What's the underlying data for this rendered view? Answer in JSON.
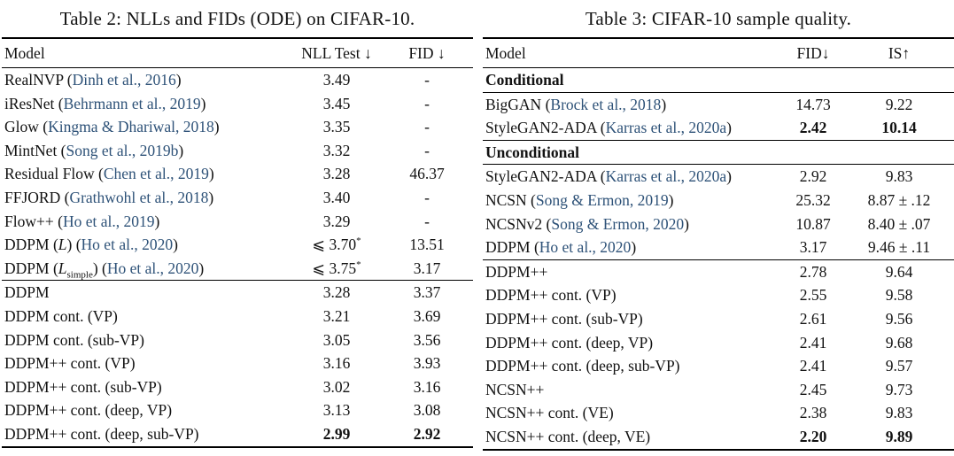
{
  "citation_color": "#2E5278",
  "tables": [
    {
      "title": "Table 2: NLLs and FIDs (ODE) on CIFAR-10.",
      "columns": [
        "Model",
        "NLL Test ↓",
        "FID ↓"
      ],
      "groups": [
        {
          "rows": [
            {
              "model": [
                {
                  "t": "RealNVP ("
                },
                {
                  "t": "Dinh et al., 2016",
                  "s": "cite"
                },
                {
                  "t": ")"
                }
              ],
              "values": [
                "3.49",
                "-"
              ]
            },
            {
              "model": [
                {
                  "t": "iResNet ("
                },
                {
                  "t": "Behrmann et al., 2019",
                  "s": "cite"
                },
                {
                  "t": ")"
                }
              ],
              "values": [
                "3.45",
                "-"
              ]
            },
            {
              "model": [
                {
                  "t": "Glow ("
                },
                {
                  "t": "Kingma & Dhariwal, 2018",
                  "s": "cite"
                },
                {
                  "t": ")"
                }
              ],
              "values": [
                "3.35",
                "-"
              ]
            },
            {
              "model": [
                {
                  "t": "MintNet ("
                },
                {
                  "t": "Song et al., 2019b",
                  "s": "cite"
                },
                {
                  "t": ")"
                }
              ],
              "values": [
                "3.32",
                "-"
              ]
            },
            {
              "model": [
                {
                  "t": "Residual Flow ("
                },
                {
                  "t": "Chen et al., 2019",
                  "s": "cite"
                },
                {
                  "t": ")"
                }
              ],
              "values": [
                "3.28",
                "46.37"
              ]
            },
            {
              "model": [
                {
                  "t": "FFJORD ("
                },
                {
                  "t": "Grathwohl et al., 2018",
                  "s": "cite"
                },
                {
                  "t": ")"
                }
              ],
              "values": [
                "3.40",
                "-"
              ]
            },
            {
              "model": [
                {
                  "t": "Flow++ ("
                },
                {
                  "t": "Ho et al., 2019",
                  "s": "cite"
                },
                {
                  "t": ")"
                }
              ],
              "values": [
                "3.29",
                "-"
              ]
            },
            {
              "model": [
                {
                  "t": "DDPM ("
                },
                {
                  "t": "L",
                  "s": "italic"
                },
                {
                  "t": ") ("
                },
                {
                  "t": "Ho et al., 2020",
                  "s": "cite"
                },
                {
                  "t": ")"
                }
              ],
              "values": [
                [
                  {
                    "t": "⩽ 3.70"
                  },
                  {
                    "t": "*",
                    "s": "sup"
                  }
                ],
                "13.51"
              ]
            },
            {
              "model": [
                {
                  "t": "DDPM ("
                },
                {
                  "t": "L",
                  "s": "italic"
                },
                {
                  "t": "simple",
                  "s": "sub"
                },
                {
                  "t": ") ("
                },
                {
                  "t": "Ho et al., 2020",
                  "s": "cite"
                },
                {
                  "t": ")"
                }
              ],
              "values": [
                [
                  {
                    "t": "⩽ 3.75"
                  },
                  {
                    "t": "*",
                    "s": "sup"
                  }
                ],
                "3.17"
              ]
            }
          ]
        },
        {
          "rows": [
            {
              "model": [
                {
                  "t": "DDPM"
                }
              ],
              "values": [
                "3.28",
                "3.37"
              ]
            },
            {
              "model": [
                {
                  "t": "DDPM cont. (VP)"
                }
              ],
              "values": [
                "3.21",
                "3.69"
              ]
            },
            {
              "model": [
                {
                  "t": "DDPM cont. (sub-VP)"
                }
              ],
              "values": [
                "3.05",
                "3.56"
              ]
            },
            {
              "model": [
                {
                  "t": "DDPM++ cont. (VP)"
                }
              ],
              "values": [
                "3.16",
                "3.93"
              ]
            },
            {
              "model": [
                {
                  "t": "DDPM++ cont. (sub-VP)"
                }
              ],
              "values": [
                "3.02",
                "3.16"
              ]
            },
            {
              "model": [
                {
                  "t": "DDPM++ cont. (deep, VP)"
                }
              ],
              "values": [
                "3.13",
                "3.08"
              ]
            },
            {
              "model": [
                {
                  "t": "DDPM++ cont. (deep, sub-VP)"
                }
              ],
              "values": [
                [
                  {
                    "t": "2.99",
                    "s": "bold"
                  }
                ],
                [
                  {
                    "t": "2.92",
                    "s": "bold"
                  }
                ]
              ]
            }
          ]
        }
      ]
    },
    {
      "title": "Table 3: CIFAR-10 sample quality.",
      "columns": [
        "Model",
        "FID↓",
        "IS↑"
      ],
      "groups": [
        {
          "section": "Conditional"
        },
        {
          "rows": [
            {
              "model": [
                {
                  "t": "BigGAN ("
                },
                {
                  "t": "Brock et al., 2018",
                  "s": "cite"
                },
                {
                  "t": ")"
                }
              ],
              "values": [
                "14.73",
                "9.22"
              ]
            },
            {
              "model": [
                {
                  "t": "StyleGAN2-ADA ("
                },
                {
                  "t": "Karras et al., 2020a",
                  "s": "cite"
                },
                {
                  "t": ")"
                }
              ],
              "values": [
                [
                  {
                    "t": "2.42",
                    "s": "bold"
                  }
                ],
                [
                  {
                    "t": "10.14",
                    "s": "bold"
                  }
                ]
              ]
            }
          ]
        },
        {
          "section": "Unconditional"
        },
        {
          "rows": [
            {
              "model": [
                {
                  "t": "StyleGAN2-ADA ("
                },
                {
                  "t": "Karras et al., 2020a",
                  "s": "cite"
                },
                {
                  "t": ")"
                }
              ],
              "values": [
                "2.92",
                "9.83"
              ]
            },
            {
              "model": [
                {
                  "t": "NCSN ("
                },
                {
                  "t": "Song & Ermon, 2019",
                  "s": "cite"
                },
                {
                  "t": ")"
                }
              ],
              "values": [
                "25.32",
                "8.87 ± .12"
              ]
            },
            {
              "model": [
                {
                  "t": "NCSNv2 ("
                },
                {
                  "t": "Song & Ermon, 2020",
                  "s": "cite"
                },
                {
                  "t": ")"
                }
              ],
              "values": [
                "10.87",
                "8.40 ± .07"
              ]
            },
            {
              "model": [
                {
                  "t": "DDPM ("
                },
                {
                  "t": "Ho et al., 2020",
                  "s": "cite"
                },
                {
                  "t": ")"
                }
              ],
              "values": [
                "3.17",
                "9.46 ± .11"
              ]
            }
          ]
        },
        {
          "rows": [
            {
              "model": [
                {
                  "t": "DDPM++"
                }
              ],
              "values": [
                "2.78",
                "9.64"
              ]
            },
            {
              "model": [
                {
                  "t": "DDPM++ cont. (VP)"
                }
              ],
              "values": [
                "2.55",
                "9.58"
              ]
            },
            {
              "model": [
                {
                  "t": "DDPM++ cont. (sub-VP)"
                }
              ],
              "values": [
                "2.61",
                "9.56"
              ]
            },
            {
              "model": [
                {
                  "t": "DDPM++ cont. (deep, VP)"
                }
              ],
              "values": [
                "2.41",
                "9.68"
              ]
            },
            {
              "model": [
                {
                  "t": "DDPM++ cont. (deep, sub-VP)"
                }
              ],
              "values": [
                "2.41",
                "9.57"
              ]
            },
            {
              "model": [
                {
                  "t": "NCSN++"
                }
              ],
              "values": [
                "2.45",
                "9.73"
              ]
            },
            {
              "model": [
                {
                  "t": "NCSN++ cont. (VE)"
                }
              ],
              "values": [
                "2.38",
                "9.83"
              ]
            },
            {
              "model": [
                {
                  "t": "NCSN++ cont. (deep, VE)"
                }
              ],
              "values": [
                [
                  {
                    "t": "2.20",
                    "s": "bold"
                  }
                ],
                [
                  {
                    "t": "9.89",
                    "s": "bold"
                  }
                ]
              ]
            }
          ]
        }
      ]
    }
  ]
}
